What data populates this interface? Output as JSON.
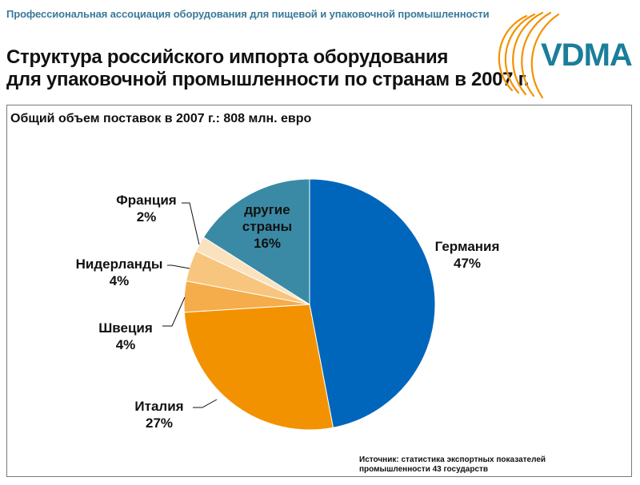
{
  "header": {
    "association": "Профессиональная ассоциация оборудования для пищевой и упаковочной промышленности",
    "title_line1": "Структура российского импорта оборудования",
    "title_line2": "для упаковочной промышленности по странам в 2007 г.",
    "logo_text": "VDMA"
  },
  "chart_data": {
    "type": "pie",
    "title": "Структура российского импорта оборудования для упаковочной промышленности по странам в 2007 г.",
    "subtitle": "Общий объем поставок в 2007 г.: 808 млн. евро",
    "slices": [
      {
        "label": "Германия",
        "value": 47,
        "pct_label": "47%",
        "color": "#0066bb"
      },
      {
        "label": "Италия",
        "value": 27,
        "pct_label": "27%",
        "color": "#f39200"
      },
      {
        "label": "Швеция",
        "value": 4,
        "pct_label": "4%",
        "color": "#f5ac4a"
      },
      {
        "label": "Нидерланды",
        "value": 4,
        "pct_label": "4%",
        "color": "#f7c57e"
      },
      {
        "label": "Франция",
        "value": 2,
        "pct_label": "2%",
        "color": "#fbe2be"
      },
      {
        "label_line1": "другие",
        "label_line2": "страны",
        "value": 16,
        "pct_label": "16%",
        "color": "#3a8aa6"
      }
    ],
    "source_line1": "Источник: статистика  экспортных показателей",
    "source_line2": "промышленности 43 государств"
  },
  "colors": {
    "accent_orange": "#f39200",
    "logo_teal": "#1a7e9a",
    "association_text": "#3a7a9a"
  }
}
